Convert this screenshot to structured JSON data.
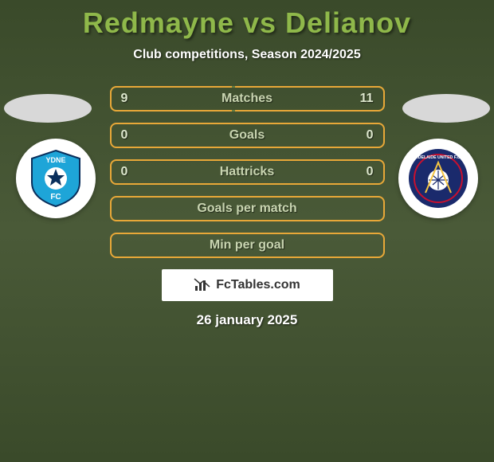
{
  "title": "Redmayne vs Delianov",
  "subtitle": "Club competitions, Season 2024/2025",
  "date": "26 january 2025",
  "branding": "FcTables.com",
  "colors": {
    "title": "#8fb84a",
    "text": "#ffffff",
    "row_border_orange": "#e8a838",
    "row_border_green": "#6a8040",
    "bg_top": "#3a4a2a",
    "bg_mid": "#4a5a38"
  },
  "badges": {
    "left": {
      "name": "Sydney FC",
      "bg": "#ffffff",
      "primary": "#1ea5d8",
      "secondary": "#0a2f5c"
    },
    "right": {
      "name": "Adelaide United",
      "bg": "#ffffff",
      "primary": "#1a2a6c",
      "secondary": "#c8102e"
    }
  },
  "rows": [
    {
      "label": "Matches",
      "left": "9",
      "right": "11",
      "left_bar_pct": 45,
      "right_bar_pct": 55,
      "border": "#6a8040",
      "bar": "#e8a838"
    },
    {
      "label": "Goals",
      "left": "0",
      "right": "0",
      "left_bar_pct": 0,
      "right_bar_pct": 0,
      "border": "#e8a838",
      "bar": "#e8a838"
    },
    {
      "label": "Hattricks",
      "left": "0",
      "right": "0",
      "left_bar_pct": 0,
      "right_bar_pct": 0,
      "border": "#e8a838",
      "bar": "#e8a838"
    },
    {
      "label": "Goals per match",
      "left": "",
      "right": "",
      "left_bar_pct": 0,
      "right_bar_pct": 0,
      "border": "#e8a838",
      "bar": "#e8a838"
    },
    {
      "label": "Min per goal",
      "left": "",
      "right": "",
      "left_bar_pct": 0,
      "right_bar_pct": 0,
      "border": "#e8a838",
      "bar": "#e8a838"
    }
  ]
}
